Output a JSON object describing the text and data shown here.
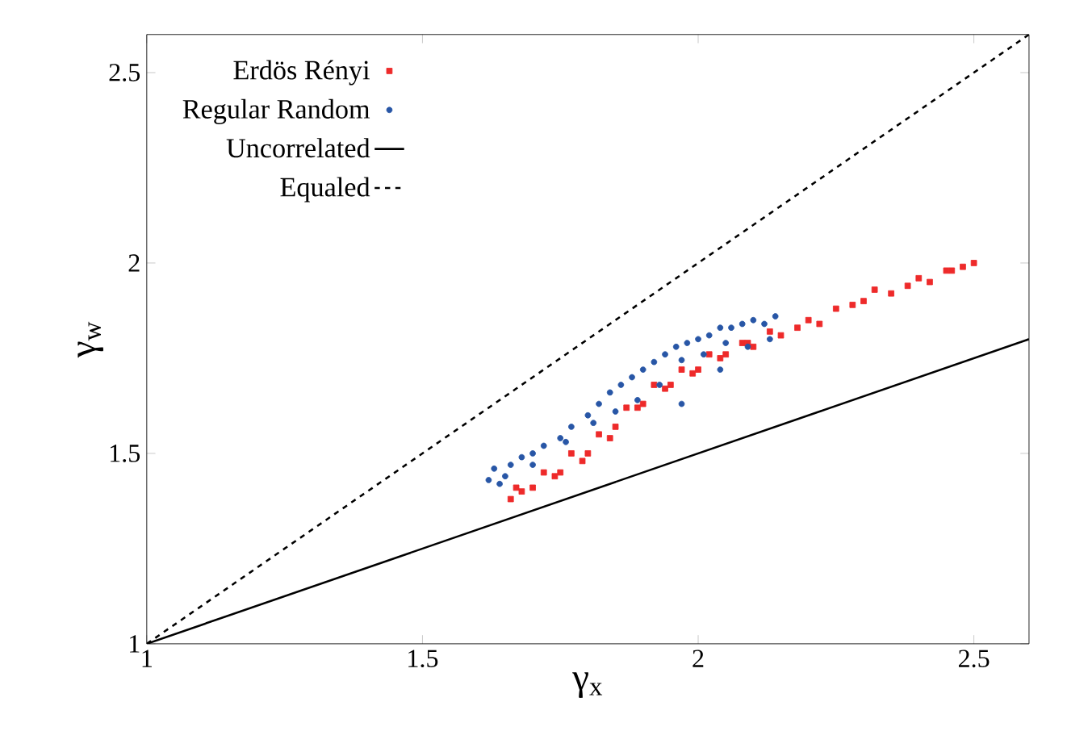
{
  "chart_data": {
    "type": "scatter",
    "xlabel": "γ$_{x}$",
    "ylabel": "γ$_{w}$",
    "xlim": [
      1,
      2.6
    ],
    "ylim": [
      1,
      2.6
    ],
    "xticks": [
      1,
      1.5,
      2,
      2.5
    ],
    "yticks": [
      1,
      1.5,
      2,
      2.5
    ],
    "grid": false,
    "legend": "top left",
    "series": [
      {
        "name": "Erdös Rényi",
        "color": "#ee2a2a",
        "marker": "square",
        "x": [
          1.66,
          1.67,
          1.7,
          1.72,
          1.75,
          1.77,
          1.8,
          1.82,
          1.85,
          1.87,
          1.9,
          1.92,
          1.95,
          1.97,
          2.0,
          2.02,
          2.05,
          2.08,
          2.1,
          2.13,
          2.15,
          2.2,
          2.22,
          2.25,
          2.3,
          2.32,
          2.35,
          2.4,
          2.42,
          2.45,
          2.48,
          2.5,
          1.68,
          1.74,
          1.79,
          1.84,
          1.89,
          1.94,
          1.99,
          2.04,
          2.09,
          2.18,
          2.28,
          2.38,
          2.46
        ],
        "values": [
          1.38,
          1.41,
          1.41,
          1.45,
          1.45,
          1.5,
          1.5,
          1.55,
          1.57,
          1.62,
          1.63,
          1.68,
          1.68,
          1.72,
          1.72,
          1.76,
          1.76,
          1.79,
          1.78,
          1.82,
          1.81,
          1.85,
          1.84,
          1.88,
          1.9,
          1.93,
          1.92,
          1.96,
          1.95,
          1.98,
          1.99,
          2.0,
          1.4,
          1.44,
          1.48,
          1.54,
          1.62,
          1.67,
          1.71,
          1.75,
          1.79,
          1.83,
          1.89,
          1.94,
          1.98
        ]
      },
      {
        "name": "Regular Random",
        "color": "#2856a6",
        "marker": "circle",
        "x": [
          1.62,
          1.63,
          1.64,
          1.66,
          1.68,
          1.7,
          1.72,
          1.75,
          1.77,
          1.8,
          1.82,
          1.84,
          1.86,
          1.88,
          1.9,
          1.92,
          1.94,
          1.96,
          1.98,
          2.0,
          2.02,
          2.04,
          2.06,
          2.08,
          2.1,
          2.12,
          2.14,
          1.65,
          1.7,
          1.76,
          1.81,
          1.85,
          1.89,
          1.93,
          1.97,
          2.01,
          2.05,
          2.09,
          2.13,
          1.97,
          2.04
        ],
        "values": [
          1.43,
          1.46,
          1.42,
          1.47,
          1.49,
          1.5,
          1.52,
          1.54,
          1.57,
          1.6,
          1.63,
          1.66,
          1.68,
          1.7,
          1.72,
          1.74,
          1.76,
          1.78,
          1.79,
          1.8,
          1.81,
          1.83,
          1.83,
          1.84,
          1.85,
          1.84,
          1.86,
          1.44,
          1.47,
          1.53,
          1.58,
          1.61,
          1.64,
          1.68,
          1.745,
          1.76,
          1.79,
          1.78,
          1.8,
          1.63,
          1.72
        ]
      },
      {
        "name": "Uncorrelated",
        "color": "#000000",
        "type": "line",
        "marker": "none",
        "line_style": "solid",
        "x": [
          1,
          2.6
        ],
        "values": [
          1,
          1.8
        ]
      },
      {
        "name": "Equaled",
        "color": "#000000",
        "type": "line",
        "marker": "none",
        "line_style": "dashed",
        "x": [
          1,
          2.6
        ],
        "values": [
          1,
          2.6
        ]
      }
    ]
  }
}
